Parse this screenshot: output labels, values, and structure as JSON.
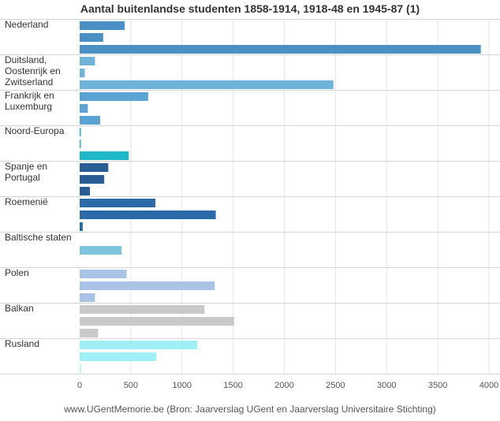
{
  "chart_data": {
    "type": "bar",
    "orientation": "horizontal",
    "title": "Aantal buitenlandse studenten 1858-1914, 1918-48 en 1945-87 (1)",
    "source": "www.UGentMemorie.be (Bron: Jaarverslag UGent en Jaarverslag Universitaire Stichting)",
    "xlim": [
      0,
      4000
    ],
    "xticks": [
      0,
      500,
      1000,
      1500,
      2000,
      2500,
      3000,
      3500,
      4000
    ],
    "grid": "vertical",
    "groups": [
      {
        "label": [
          "Nederland"
        ],
        "values": [
          440,
          230,
          3920
        ],
        "colors": [
          "#4a90c4",
          "#4a90c4",
          "#4a90c4"
        ]
      },
      {
        "label": [
          "Duitsland,",
          "Oostenrijk en",
          "Zwitserland"
        ],
        "values": [
          150,
          50,
          2480
        ],
        "colors": [
          "#6fb3d8",
          "#6fb3d8",
          "#6fb3d8"
        ]
      },
      {
        "label": [
          "Frankrijk en",
          "Luxemburg"
        ],
        "values": [
          670,
          80,
          200
        ],
        "colors": [
          "#5ba3d2",
          "#5ba3d2",
          "#5ba3d2"
        ]
      },
      {
        "label": [
          "Noord-Europa"
        ],
        "values": [
          10,
          5,
          480
        ],
        "colors": [
          "#20b8c9",
          "#20b8c9",
          "#20b8c9"
        ]
      },
      {
        "label": [
          "Spanje en",
          "Portugal"
        ],
        "values": [
          280,
          240,
          100
        ],
        "colors": [
          "#2a5d94",
          "#2a5d94",
          "#2a5d94"
        ]
      },
      {
        "label": [
          "Roemenië"
        ],
        "values": [
          740,
          1330,
          30
        ],
        "colors": [
          "#2a6aa6",
          "#2a6aa6",
          "#2a6aa6"
        ]
      },
      {
        "label": [
          "Baltische staten"
        ],
        "values": [
          0,
          410,
          0
        ],
        "colors": [
          "#7ec4dc",
          "#7ec4dc",
          "#7ec4dc"
        ]
      },
      {
        "label": [
          "Polen"
        ],
        "values": [
          460,
          1320,
          150
        ],
        "colors": [
          "#a8c3e6",
          "#a8c3e6",
          "#a8c3e6"
        ]
      },
      {
        "label": [
          "Balkan"
        ],
        "values": [
          1220,
          1510,
          180
        ],
        "colors": [
          "#c9c9c9",
          "#c9c9c9",
          "#c9c9c9"
        ]
      },
      {
        "label": [
          "Rusland"
        ],
        "values": [
          1150,
          750,
          10
        ],
        "colors": [
          "#9ef0f6",
          "#9ef0f6",
          "#9ef0f6"
        ]
      }
    ]
  }
}
